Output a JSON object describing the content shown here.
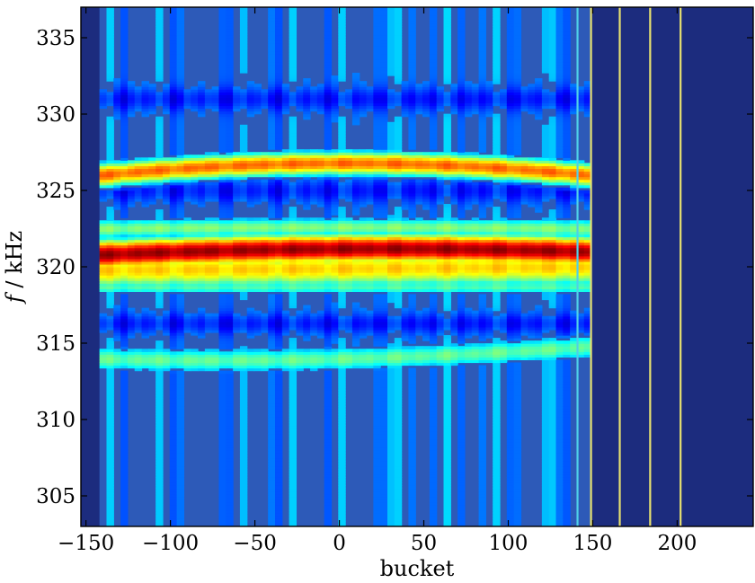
{
  "chart_data": {
    "type": "heatmap",
    "title": "",
    "xlabel": "bucket",
    "ylabel_italic": "f",
    "ylabel_unit": " / kHz",
    "xlim": [
      -153,
      245
    ],
    "ylim": [
      303,
      337
    ],
    "xticks": [
      -150,
      -100,
      -50,
      0,
      50,
      100,
      150,
      200
    ],
    "xtick_labels": [
      "−150",
      "−100",
      "−50",
      "0",
      "50",
      "100",
      "150",
      "200"
    ],
    "yticks": [
      305,
      310,
      315,
      320,
      325,
      330,
      335
    ],
    "ytick_labels": [
      "305",
      "310",
      "315",
      "320",
      "325",
      "330",
      "335"
    ],
    "grid": false,
    "legend": "none",
    "colormap": "jet",
    "background_color": "#2d5ab8",
    "empty_region_color": "#1c2c7e",
    "data_extent_x": [
      -142,
      149
    ],
    "bands": [
      {
        "center_start": 326.0,
        "center_mid": 326.8,
        "center_end": 326.0,
        "width": 0.9,
        "intensity": 0.72
      },
      {
        "center_start": 320.8,
        "center_mid": 321.2,
        "center_end": 321.0,
        "width": 1.1,
        "intensity": 0.92
      },
      {
        "center_start": 319.8,
        "center_mid": 319.9,
        "center_end": 320.0,
        "width": 1.4,
        "intensity": 0.62
      },
      {
        "center_start": 322.5,
        "center_mid": 322.6,
        "center_end": 322.5,
        "width": 0.8,
        "intensity": 0.45
      },
      {
        "center_start": 318.7,
        "center_mid": 318.7,
        "center_end": 318.7,
        "width": 0.6,
        "intensity": 0.4
      },
      {
        "center_start": 314.0,
        "center_mid": 314.0,
        "center_end": 314.8,
        "width": 1.0,
        "intensity": 0.42
      }
    ],
    "dark_bands": [
      {
        "center": 331.0,
        "width": 0.8
      },
      {
        "center": 325.0,
        "width": 0.8
      },
      {
        "center": 316.3,
        "width": 0.7
      }
    ],
    "vertical_lines": [
      {
        "x": 141,
        "color": "#4fd1e8"
      },
      {
        "x": 149,
        "color": "#e6e070"
      },
      {
        "x": 166,
        "color": "#e6e070"
      },
      {
        "x": 184,
        "color": "#e6e070"
      },
      {
        "x": 202,
        "color": "#e6e070"
      }
    ]
  }
}
